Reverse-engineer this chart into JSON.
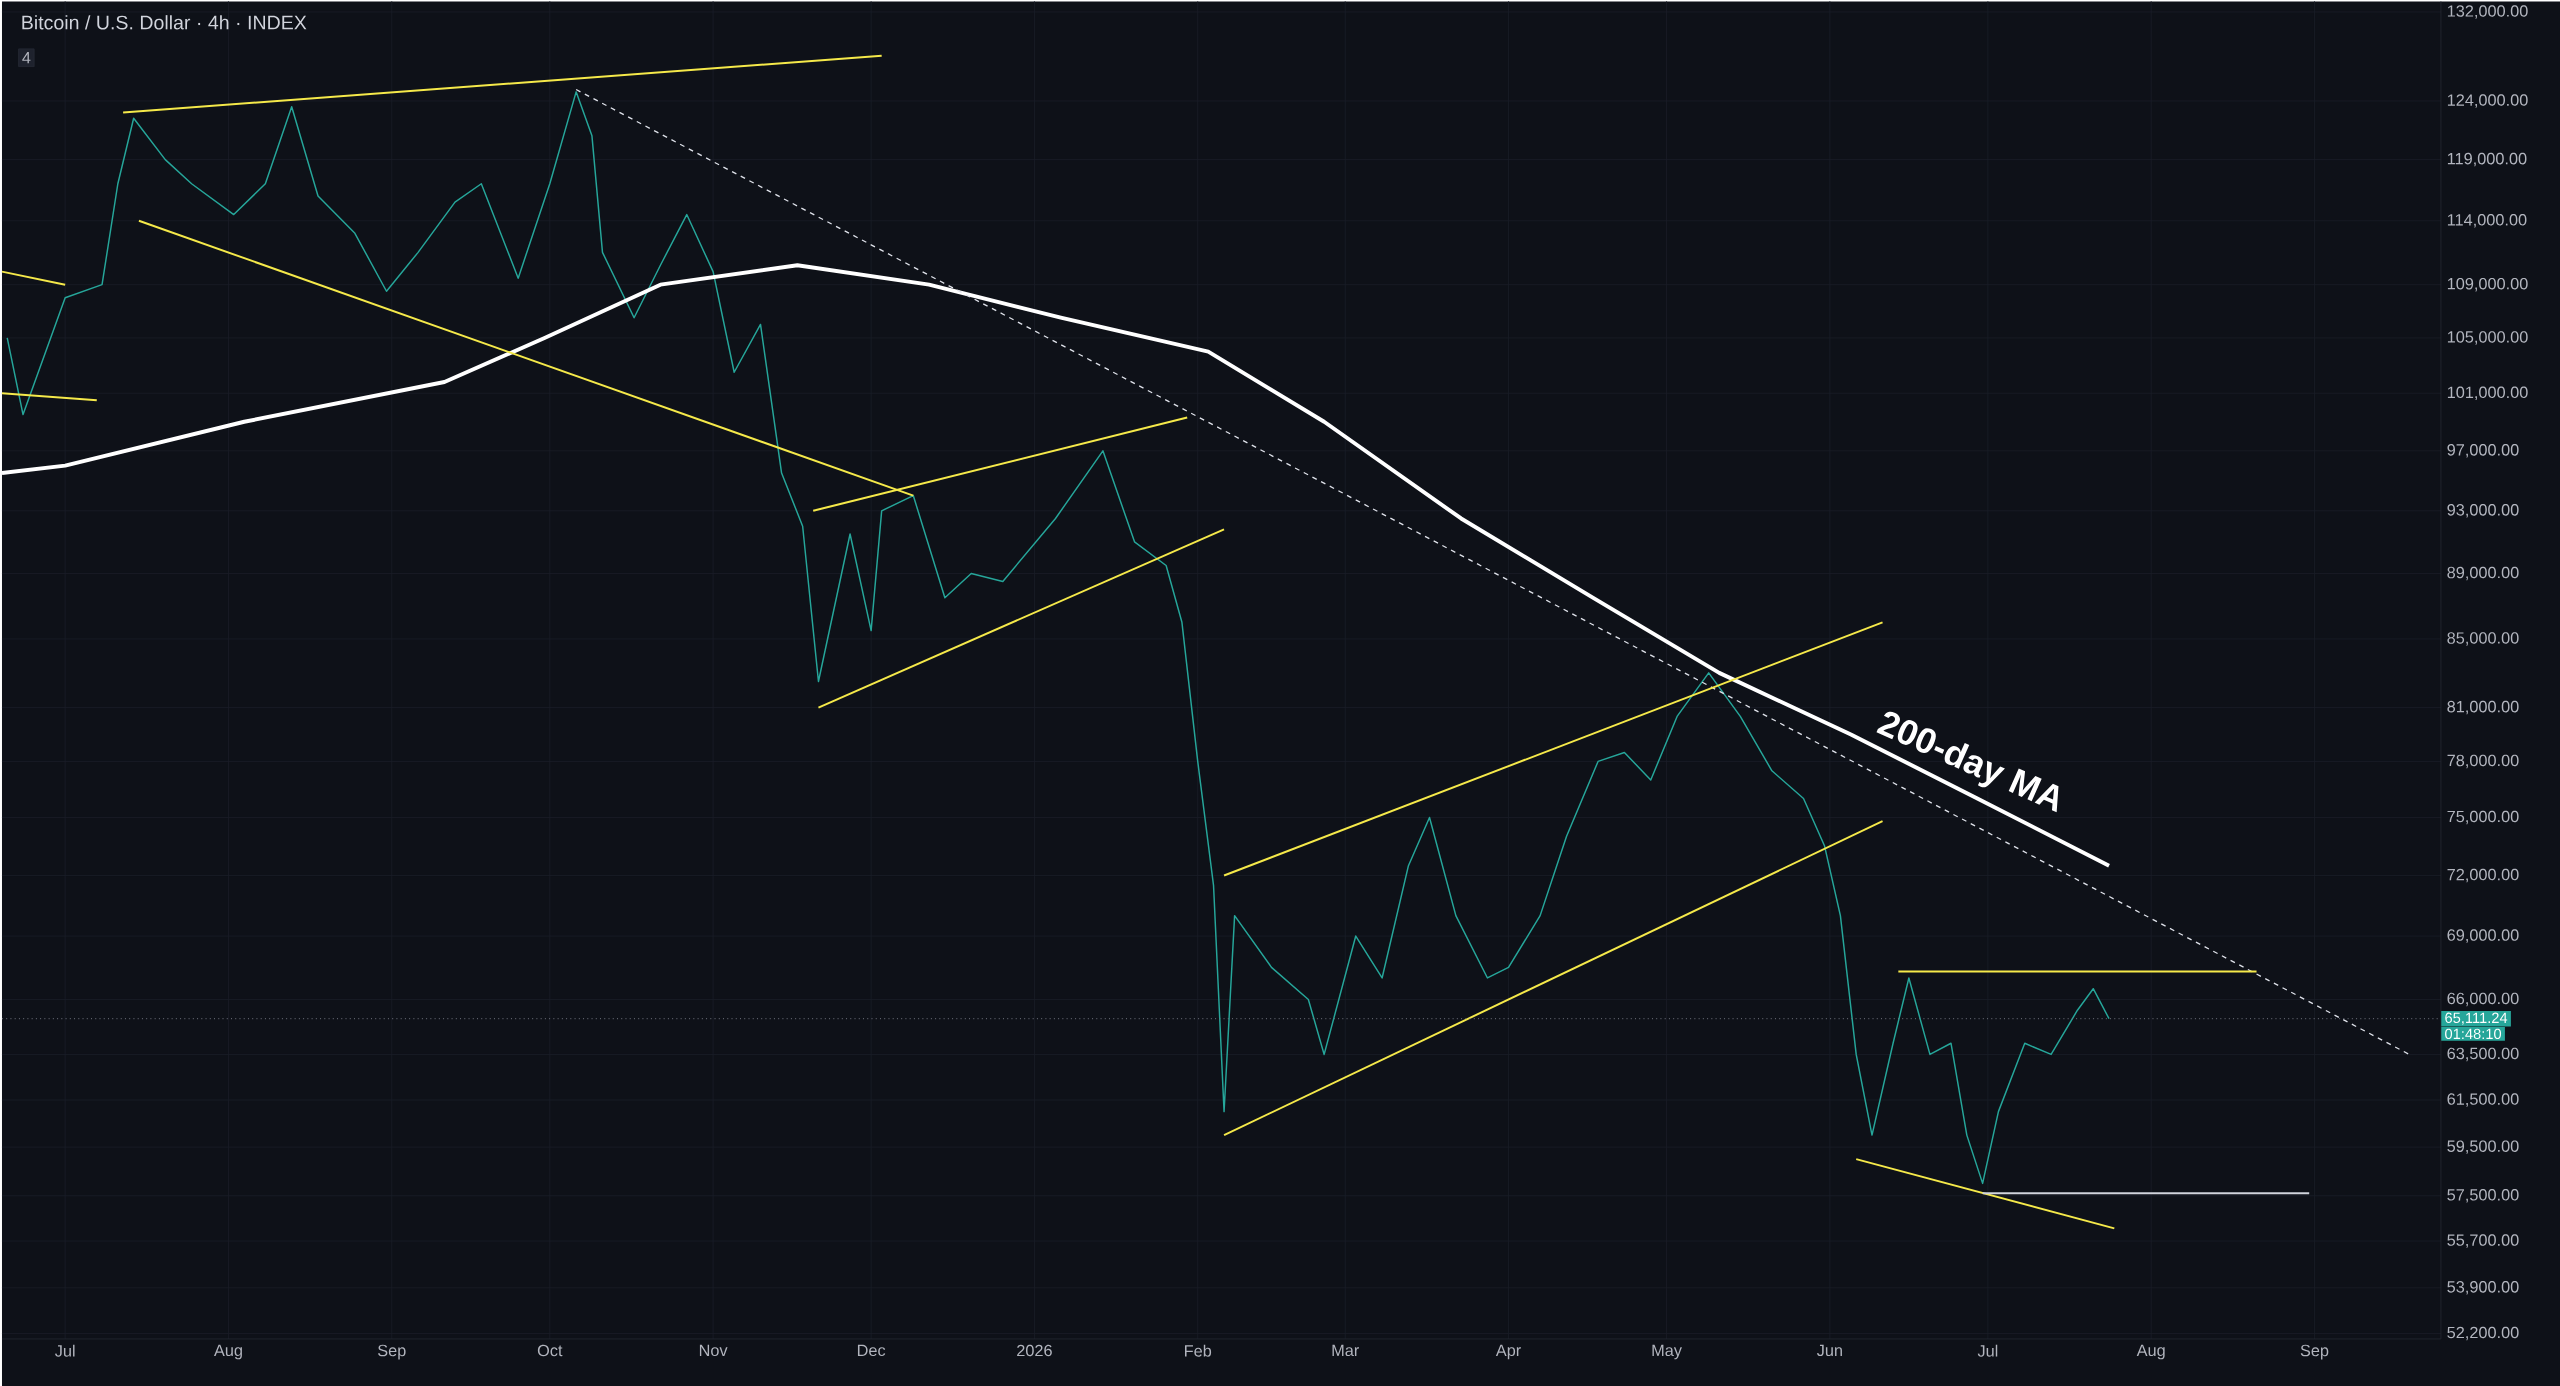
{
  "chart_data": {
    "type": "line",
    "title": "Bitcoin / U.S. Dollar · 4h · INDEX",
    "log": true,
    "grid": true,
    "xlim": [
      "2025-06-19",
      "2026-09-25"
    ],
    "ylim": [
      52000,
      133000
    ],
    "xticks": [
      {
        "value": "2025-07-01",
        "label": "Jul"
      },
      {
        "value": "2025-08-01",
        "label": "Aug"
      },
      {
        "value": "2025-09-01",
        "label": "Sep"
      },
      {
        "value": "2025-10-01",
        "label": "Oct"
      },
      {
        "value": "2025-11-01",
        "label": "Nov"
      },
      {
        "value": "2025-12-01",
        "label": "Dec"
      },
      {
        "value": "2026-01-01",
        "label": "2026"
      },
      {
        "value": "2026-02-01",
        "label": "Feb"
      },
      {
        "value": "2026-03-01",
        "label": "Mar"
      },
      {
        "value": "2026-04-01",
        "label": "Apr"
      },
      {
        "value": "2026-05-01",
        "label": "May"
      },
      {
        "value": "2026-06-01",
        "label": "Jun"
      },
      {
        "value": "2026-07-01",
        "label": "Jul"
      },
      {
        "value": "2026-08-01",
        "label": "Aug"
      },
      {
        "value": "2026-09-01",
        "label": "Sep"
      }
    ],
    "yticks": [
      {
        "value": 52200,
        "label": "52,200.00"
      },
      {
        "value": 53900,
        "label": "53,900.00"
      },
      {
        "value": 55700,
        "label": "55,700.00"
      },
      {
        "value": 57500,
        "label": "57,500.00"
      },
      {
        "value": 59500,
        "label": "59,500.00"
      },
      {
        "value": 61500,
        "label": "61,500.00"
      },
      {
        "value": 63500,
        "label": "63,500.00"
      },
      {
        "value": 66000,
        "label": "66,000.00"
      },
      {
        "value": 69000,
        "label": "69,000.00"
      },
      {
        "value": 72000,
        "label": "72,000.00"
      },
      {
        "value": 75000,
        "label": "75,000.00"
      },
      {
        "value": 78000,
        "label": "78,000.00"
      },
      {
        "value": 81000,
        "label": "81,000.00"
      },
      {
        "value": 85000,
        "label": "85,000.00"
      },
      {
        "value": 89000,
        "label": "89,000.00"
      },
      {
        "value": 93000,
        "label": "93,000.00"
      },
      {
        "value": 97000,
        "label": "97,000.00"
      },
      {
        "value": 101000,
        "label": "101,000.00"
      },
      {
        "value": 105000,
        "label": "105,000.00"
      },
      {
        "value": 109000,
        "label": "109,000.00"
      },
      {
        "value": 114000,
        "label": "114,000.00"
      },
      {
        "value": 119000,
        "label": "119,000.00"
      },
      {
        "value": 124000,
        "label": "124,000.00"
      },
      {
        "value": 132000,
        "label": "132,000.00"
      }
    ],
    "series": [
      {
        "type": "line",
        "color": "#26a69a",
        "x": [
          "2025-06-20",
          "2025-06-23",
          "2025-07-01",
          "2025-07-08",
          "2025-07-11",
          "2025-07-14",
          "2025-07-20",
          "2025-07-25",
          "2025-08-02",
          "2025-08-08",
          "2025-08-13",
          "2025-08-18",
          "2025-08-25",
          "2025-08-31",
          "2025-09-06",
          "2025-09-13",
          "2025-09-18",
          "2025-09-25",
          "2025-10-01",
          "2025-10-06",
          "2025-10-09",
          "2025-10-11",
          "2025-10-17",
          "2025-10-22",
          "2025-10-27",
          "2025-11-01",
          "2025-11-05",
          "2025-11-10",
          "2025-11-14",
          "2025-11-18",
          "2025-11-21",
          "2025-11-27",
          "2025-12-01",
          "2025-12-03",
          "2025-12-09",
          "2025-12-15",
          "2025-12-20",
          "2025-12-26",
          "2026-01-05",
          "2026-01-14",
          "2026-01-20",
          "2026-01-26",
          "2026-01-29",
          "2026-02-01",
          "2026-02-04",
          "2026-02-06",
          "2026-02-08",
          "2026-02-15",
          "2026-02-22",
          "2026-02-25",
          "2026-03-03",
          "2026-03-08",
          "2026-03-13",
          "2026-03-17",
          "2026-03-22",
          "2026-03-28",
          "2026-04-01",
          "2026-04-07",
          "2026-04-12",
          "2026-04-18",
          "2026-04-23",
          "2026-04-28",
          "2026-05-03",
          "2026-05-09",
          "2026-05-15",
          "2026-05-21",
          "2026-05-27",
          "2026-05-31",
          "2026-06-03",
          "2026-06-06",
          "2026-06-09",
          "2026-06-13",
          "2026-06-16",
          "2026-06-20",
          "2026-06-24",
          "2026-06-27",
          "2026-06-30",
          "2026-07-03",
          "2026-07-08",
          "2026-07-13",
          "2026-07-18",
          "2026-07-21",
          "2026-07-24"
        ],
        "values": [
          105000,
          99500,
          108000,
          109000,
          117000,
          122500,
          119000,
          117000,
          114500,
          117000,
          123500,
          116000,
          113000,
          108500,
          111500,
          115500,
          117000,
          109500,
          117000,
          124800,
          121000,
          111500,
          106500,
          110500,
          114500,
          110000,
          102500,
          106000,
          95500,
          92000,
          82500,
          91500,
          85500,
          93000,
          94000,
          87500,
          89000,
          88500,
          92500,
          97000,
          91000,
          89500,
          86000,
          78000,
          71500,
          61000,
          70000,
          67500,
          66000,
          63500,
          69000,
          67000,
          72500,
          75000,
          70000,
          67000,
          67500,
          70000,
          74000,
          78000,
          78500,
          77000,
          80500,
          83000,
          80500,
          77500,
          76000,
          73500,
          70000,
          63500,
          60000,
          64000,
          67000,
          63500,
          64000,
          60000,
          58000,
          61000,
          64000,
          63500,
          65500,
          66500,
          65111
        ]
      },
      {
        "type": "line",
        "color": "#ffffff",
        "x": [
          "2025-06-19",
          "2025-07-01",
          "2025-08-04",
          "2025-09-11",
          "2025-09-30",
          "2025-10-22",
          "2025-11-17",
          "2025-12-12",
          "2026-01-06",
          "2026-02-03",
          "2026-02-25",
          "2026-03-23",
          "2026-04-17",
          "2026-05-11",
          "2026-06-05",
          "2026-06-29",
          "2026-07-24"
        ],
        "values": [
          95500,
          96000,
          99000,
          101800,
          105000,
          109000,
          110500,
          109000,
          106500,
          104000,
          99000,
          92500,
          87500,
          83000,
          79500,
          76000,
          72500
        ]
      },
      {
        "type": "line",
        "color": "#e0e3eb",
        "line_style": "dashed",
        "x": [
          "2025-10-06",
          "2026-09-19"
        ],
        "values": [
          125000,
          63500
        ]
      },
      {
        "type": "line",
        "color": "#f5e94a",
        "x": [
          "2025-07-12",
          "2025-12-03"
        ],
        "values": [
          123000,
          128000
        ]
      },
      {
        "type": "line",
        "color": "#f5e94a",
        "x": [
          "2025-07-15",
          "2025-12-09"
        ],
        "values": [
          114000,
          94000
        ]
      },
      {
        "type": "line",
        "color": "#f5e94a",
        "x": [
          "2025-06-19",
          "2025-07-01"
        ],
        "values": [
          110000,
          109000
        ]
      },
      {
        "type": "line",
        "color": "#f5e94a",
        "x": [
          "2025-06-19",
          "2025-07-07"
        ],
        "values": [
          101000,
          100500
        ]
      },
      {
        "type": "line",
        "color": "#f5e94a",
        "x": [
          "2025-11-20",
          "2026-01-30"
        ],
        "values": [
          93000,
          99300
        ]
      },
      {
        "type": "line",
        "color": "#f5e94a",
        "x": [
          "2025-11-21",
          "2026-02-06"
        ],
        "values": [
          81000,
          91800
        ]
      },
      {
        "type": "line",
        "color": "#f5e94a",
        "x": [
          "2026-02-06",
          "2026-06-11"
        ],
        "values": [
          72000,
          86000
        ]
      },
      {
        "type": "line",
        "color": "#f5e94a",
        "x": [
          "2026-02-06",
          "2026-06-11"
        ],
        "values": [
          60000,
          74800
        ]
      },
      {
        "type": "line",
        "color": "#f5e94a",
        "x": [
          "2026-06-14",
          "2026-08-21"
        ],
        "values": [
          67300,
          67300
        ]
      },
      {
        "type": "line",
        "color": "#f5e94a",
        "x": [
          "2026-06-06",
          "2026-07-25"
        ],
        "values": [
          59000,
          56200
        ]
      },
      {
        "type": "line",
        "color": "#d1d4dc",
        "x": [
          "2026-06-30",
          "2026-08-31"
        ],
        "values": [
          57600,
          57600
        ]
      }
    ],
    "ref_lines": [
      {
        "axis": "y",
        "value": 65111.24,
        "label": "65,111.24",
        "color": "#787b86",
        "line_style": "dotted"
      }
    ],
    "annotations": [
      "4",
      "01:48:10",
      "200-day MA"
    ]
  }
}
